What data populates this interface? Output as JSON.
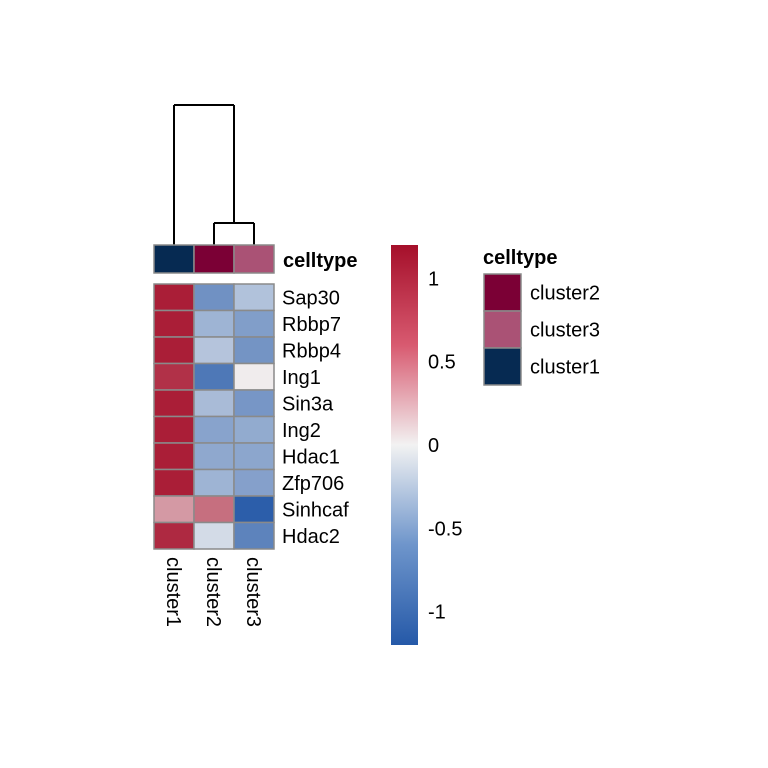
{
  "chart_data": {
    "type": "heatmap",
    "columns": [
      "cluster1",
      "cluster2",
      "cluster3"
    ],
    "rows": [
      "Sap30",
      "Rbbp7",
      "Rbbp4",
      "Ing1",
      "Sin3a",
      "Ing2",
      "Hdac1",
      "Zfp706",
      "Sinhcaf",
      "Hdac2"
    ],
    "values": [
      [
        1.12,
        -0.76,
        -0.38
      ],
      [
        1.12,
        -0.49,
        -0.66
      ],
      [
        1.12,
        -0.36,
        -0.74
      ],
      [
        1.02,
        -0.96,
        0.03
      ],
      [
        1.12,
        -0.43,
        -0.72
      ],
      [
        1.12,
        -0.62,
        -0.56
      ],
      [
        1.12,
        -0.58,
        -0.6
      ],
      [
        1.12,
        -0.49,
        -0.64
      ],
      [
        0.47,
        0.69,
        -1.16
      ],
      [
        1.06,
        -0.18,
        -0.87
      ]
    ],
    "annotation": {
      "title": "celltype",
      "column_values": [
        "cluster1",
        "cluster2",
        "cluster3"
      ],
      "legend": [
        {
          "label": "cluster2",
          "color": "#7B0035"
        },
        {
          "label": "cluster3",
          "color": "#AA5275"
        },
        {
          "label": "cluster1",
          "color": "#062A52"
        }
      ]
    },
    "color_scale": {
      "min": -1.2,
      "max": 1.2,
      "ticks": [
        1,
        0.5,
        0,
        -0.5,
        -1
      ],
      "tick_labels": [
        "1",
        "0.5",
        "0",
        "-0.5",
        "-1"
      ],
      "low_color": "#2559A8",
      "mid_color": "#F2F2F2",
      "high_color": "#A50F2A"
    },
    "dendrogram": {
      "type": "column",
      "merges": [
        {
          "members": [
            "cluster2",
            "cluster3"
          ],
          "height": 0.35
        },
        {
          "members": [
            "cluster1",
            "cluster2+cluster3"
          ],
          "height": 1.0
        }
      ]
    },
    "grid_color": "#8A8A8A"
  }
}
